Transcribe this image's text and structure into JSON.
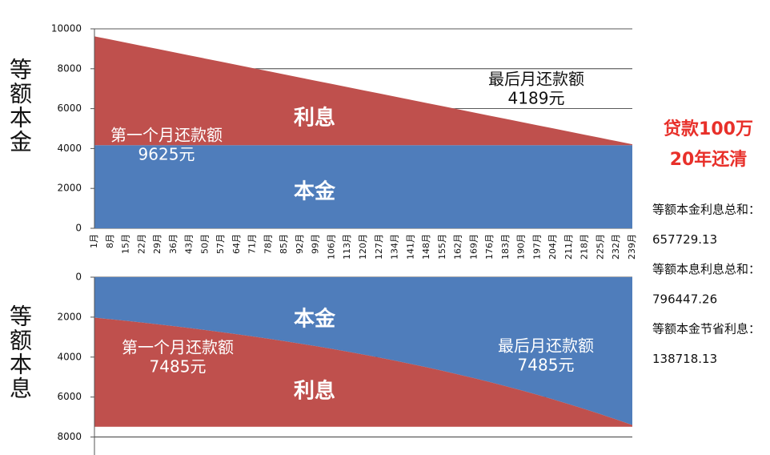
{
  "chart_data": [
    {
      "type": "area",
      "stacked": true,
      "y_label": "等额本金",
      "categories": [
        "1月",
        "8月",
        "15月",
        "22月",
        "29月",
        "36月",
        "43月",
        "50月",
        "57月",
        "64月",
        "71月",
        "78月",
        "85月",
        "92月",
        "99月",
        "106月",
        "113月",
        "120月",
        "127月",
        "134月",
        "141月",
        "148月",
        "155月",
        "162月",
        "169月",
        "176月",
        "183月",
        "190月",
        "197月",
        "204月",
        "211月",
        "218月",
        "225月",
        "232月",
        "239月"
      ],
      "series": [
        {
          "name": "本金",
          "color": "#4f7dbb",
          "values": [
            4167,
            4167,
            4167,
            4167,
            4167,
            4167,
            4167,
            4167,
            4167,
            4167,
            4167,
            4167,
            4167,
            4167,
            4167,
            4167,
            4167,
            4167,
            4167,
            4167,
            4167,
            4167,
            4167,
            4167,
            4167,
            4167,
            4167,
            4167,
            4167,
            4167,
            4167,
            4167,
            4167,
            4167,
            4167
          ]
        },
        {
          "name": "利息",
          "color": "#bf504d",
          "values": [
            5458,
            5299,
            5140,
            4981,
            4822,
            4662,
            4503,
            4344,
            4185,
            4026,
            3866,
            3707,
            3548,
            3389,
            3230,
            3070,
            2911,
            2752,
            2593,
            2433,
            2274,
            2115,
            1956,
            1797,
            1637,
            1478,
            1319,
            1160,
            1001,
            841,
            682,
            523,
            364,
            205,
            45
          ]
        }
      ],
      "ylim": [
        0,
        10000
      ],
      "yticks": [
        0,
        2000,
        4000,
        6000,
        8000,
        10000
      ],
      "y_inverted": false,
      "grid": true,
      "annotations": [
        {
          "text": "第一个月还款额",
          "color": "#ffffff"
        },
        {
          "text": "9625元",
          "color": "#ffffff"
        },
        {
          "text": "最后月还款额",
          "color": "#111111"
        },
        {
          "text": "4189元",
          "color": "#111111"
        }
      ]
    },
    {
      "type": "area",
      "stacked": true,
      "y_label": "等额本息",
      "series": [
        {
          "name": "本金",
          "color": "#4f7dbb",
          "values": [
            2027,
            2106,
            2187,
            2272,
            2360,
            2452,
            2547,
            2646,
            2749,
            2856,
            2967,
            3082,
            3202,
            3326,
            3455,
            3589,
            3729,
            3874,
            4024,
            4180,
            4343,
            4511,
            4687,
            4869,
            5058,
            5254,
            5458,
            5670,
            5890,
            6119,
            6357,
            6604,
            6860,
            7126,
            7403
          ]
        },
        {
          "name": "利息",
          "color": "#bf504d",
          "values": [
            5458,
            5379,
            5298,
            5213,
            5125,
            5033,
            4938,
            4839,
            4736,
            4629,
            4518,
            4403,
            4283,
            4159,
            4030,
            3896,
            3756,
            3611,
            3461,
            3305,
            3142,
            2974,
            2798,
            2616,
            2427,
            2231,
            2027,
            1815,
            1595,
            1366,
            1128,
            881,
            625,
            359,
            82
          ]
        }
      ],
      "ylim": [
        0,
        8900
      ],
      "yticks": [
        0,
        2000,
        4000,
        6000,
        8000
      ],
      "y_inverted": true,
      "grid": true,
      "annotations": [
        {
          "text": "第一个月还款额",
          "color": "#ffffff"
        },
        {
          "text": "7485元",
          "color": "#ffffff"
        },
        {
          "text": "最后月还款额",
          "color": "#ffffff"
        },
        {
          "text": "7485元",
          "color": "#ffffff"
        }
      ]
    }
  ],
  "side_panel": {
    "headline": [
      "贷款100万",
      "20年还清"
    ],
    "lines": [
      "等额本金利息总和：",
      "657729.13",
      "等额本息利息总和：",
      "796447.26",
      "等额本金节省利息：",
      "138718.13"
    ]
  }
}
